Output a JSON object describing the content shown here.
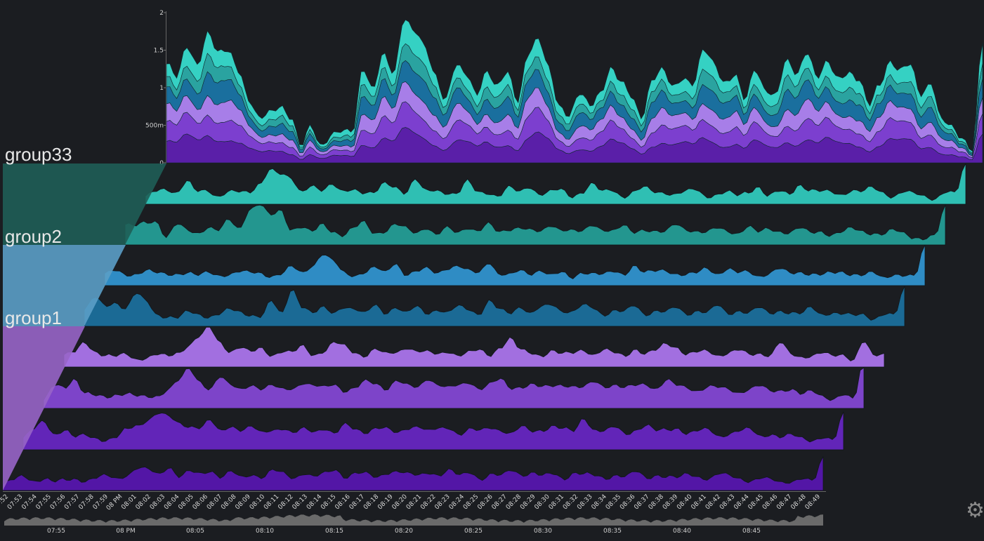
{
  "settings_icon": "gear-icon",
  "chart_data": [
    {
      "type": "area",
      "stacked": true,
      "title": "",
      "y_ticks": [
        "2",
        "1.5",
        "1",
        "500m",
        "0"
      ],
      "ylim": [
        0,
        2
      ],
      "total_series": [
        1.3,
        1.1,
        1.55,
        1.35,
        1.75,
        1.45,
        1.5,
        1.25,
        0.8,
        0.55,
        0.7,
        0.8,
        0.6,
        0.2,
        0.5,
        0.25,
        0.35,
        0.4,
        0.45,
        1.3,
        0.95,
        1.4,
        1.2,
        1.95,
        1.75,
        1.55,
        1.2,
        0.85,
        1.25,
        1.15,
        0.95,
        1.25,
        1.0,
        1.2,
        0.85,
        1.45,
        1.6,
        1.25,
        0.8,
        0.65,
        0.9,
        0.75,
        0.95,
        1.25,
        1.05,
        0.9,
        0.65,
        1.1,
        1.2,
        1.0,
        1.15,
        1.05,
        1.5,
        1.35,
        1.1,
        1.15,
        0.8,
        1.25,
        1.0,
        0.9,
        1.35,
        1.2,
        1.5,
        1.1,
        1.3,
        1.15,
        1.25,
        1.1,
        0.75,
        1.05,
        1.35,
        1.2,
        1.3,
        0.95,
        1.1,
        0.55,
        0.45,
        0.35,
        0.2,
        1.6
      ],
      "colors": [
        "#5a1fa8",
        "#7c3fcf",
        "#a77ee8",
        "#1a6f9e",
        "#2aa3a0",
        "#35d1c3"
      ]
    },
    {
      "type": "area",
      "layout": "horizon-stack",
      "x_ticks": [
        ":52",
        "07:53",
        "07:54",
        "07:55",
        "07:56",
        "07:57",
        "07:58",
        "07:59",
        "08 PM",
        "08:01",
        "08:02",
        "08:03",
        "08:04",
        "08:05",
        "08:06",
        "08:07",
        "08:08",
        "08:09",
        "08:10",
        "08:11",
        "08:12",
        "08:13",
        "08:14",
        "08:15",
        "08:16",
        "08:17",
        "08:18",
        "08:19",
        "08:20",
        "08:21",
        "08:22",
        "08:23",
        "08:24",
        "08:25",
        "08:26",
        "08:27",
        "08:28",
        "08:29",
        "08:30",
        "08:31",
        "08:32",
        "08:33",
        "08:34",
        "08:35",
        "08:36",
        "08:37",
        "08:38",
        "08:39",
        "08:40",
        "08:41",
        "08:42",
        "08:43",
        "08:44",
        "08:45",
        "08:46",
        "08:47",
        "08:48",
        "08:49"
      ],
      "groups": [
        {
          "label": "group33",
          "color": "#1f5e57"
        },
        {
          "label": "group2",
          "color": "#5b9fc6"
        },
        {
          "label": "group1",
          "color": "#9865c8"
        }
      ],
      "series": [
        {
          "color": "#2fbfb3",
          "values": [
            0.2,
            0.3,
            0.35,
            0.3,
            0.6,
            0.3,
            0.3,
            0.2,
            0.35,
            0.3,
            0.25,
            0.5,
            0.9,
            0.75,
            0.6,
            0.3,
            0.5,
            0.35,
            0.45,
            0.3,
            0.4,
            0.3,
            0.25,
            0.5,
            0.45,
            0.3,
            0.6,
            0.3,
            0.35,
            0.3,
            0.25,
            0.55,
            0.3,
            0.3,
            0.2,
            0.4,
            0.3,
            0.45,
            0.25,
            0.3,
            0.35,
            0.2,
            0.3,
            0.5,
            0.3,
            0.35,
            0.2,
            0.3,
            0.4,
            0.3,
            0.3,
            0.25,
            0.3,
            0.35,
            0.2,
            0.25,
            0.3,
            0.2,
            0.3,
            0.45,
            0.2,
            0.3,
            0.25,
            0.5,
            0.35,
            0.3,
            0.3,
            0.25,
            0.35,
            0.3,
            0.4,
            0.3,
            0.2,
            0.3,
            0.25,
            0.2,
            0.15,
            0.3,
            0.25,
            1.0
          ]
        },
        {
          "color": "#23968f",
          "values": [
            0.5,
            0.45,
            0.55,
            0.6,
            0.2,
            0.5,
            0.35,
            0.3,
            0.45,
            0.35,
            0.6,
            0.4,
            0.9,
            1.0,
            0.7,
            0.85,
            0.4,
            0.45,
            0.3,
            0.5,
            0.35,
            0.25,
            0.4,
            0.55,
            0.3,
            0.35,
            0.5,
            0.4,
            0.3,
            0.45,
            0.25,
            0.4,
            0.3,
            0.45,
            0.35,
            0.5,
            0.3,
            0.4,
            0.45,
            0.35,
            0.3,
            0.5,
            0.4,
            0.35,
            0.3,
            0.5,
            0.4,
            0.35,
            0.45,
            0.3,
            0.4,
            0.35,
            0.3,
            0.5,
            0.4,
            0.35,
            0.3,
            0.4,
            0.35,
            0.3,
            0.45,
            0.3,
            0.4,
            0.35,
            0.3,
            0.4,
            0.3,
            0.35,
            0.25,
            0.3,
            0.4,
            0.35,
            0.3,
            0.25,
            0.35,
            0.3,
            0.2,
            0.15,
            0.2,
            0.95
          ]
        },
        {
          "color": "#2f8cc4",
          "values": [
            0.3,
            0.35,
            0.25,
            0.3,
            0.4,
            0.3,
            0.25,
            0.3,
            0.35,
            0.25,
            0.3,
            0.25,
            0.3,
            0.35,
            0.3,
            0.3,
            0.25,
            0.3,
            0.45,
            0.3,
            0.5,
            0.8,
            0.6,
            0.3,
            0.25,
            0.35,
            0.45,
            0.3,
            0.55,
            0.3,
            0.35,
            0.4,
            0.3,
            0.45,
            0.5,
            0.35,
            0.3,
            0.6,
            0.3,
            0.25,
            0.35,
            0.3,
            0.4,
            0.25,
            0.3,
            0.2,
            0.35,
            0.3,
            0.25,
            0.35,
            0.3,
            0.5,
            0.3,
            0.35,
            0.4,
            0.3,
            0.25,
            0.3,
            0.45,
            0.3,
            0.4,
            0.3,
            0.35,
            0.25,
            0.3,
            0.4,
            0.3,
            0.35,
            0.3,
            0.25,
            0.3,
            0.35,
            0.3,
            0.25,
            0.3,
            0.2,
            0.3,
            0.25,
            0.2,
            1.0
          ]
        },
        {
          "color": "#1b6a95",
          "values": [
            0.4,
            0.7,
            0.5,
            0.6,
            0.45,
            0.8,
            0.6,
            0.3,
            0.25,
            0.2,
            0.35,
            0.3,
            0.25,
            0.3,
            0.4,
            0.35,
            0.3,
            0.25,
            0.6,
            0.3,
            0.95,
            0.5,
            0.3,
            0.45,
            0.35,
            0.5,
            0.4,
            0.3,
            0.55,
            0.35,
            0.45,
            0.3,
            0.5,
            0.35,
            0.4,
            0.3,
            0.5,
            0.45,
            0.3,
            0.6,
            0.4,
            0.35,
            0.5,
            0.3,
            0.45,
            0.55,
            0.4,
            0.35,
            0.5,
            0.45,
            0.3,
            0.4,
            0.35,
            0.5,
            0.3,
            0.4,
            0.35,
            0.45,
            0.3,
            0.4,
            0.35,
            0.5,
            0.3,
            0.4,
            0.35,
            0.45,
            0.3,
            0.4,
            0.35,
            0.3,
            0.45,
            0.3,
            0.35,
            0.3,
            0.25,
            0.3,
            0.2,
            0.3,
            0.25,
            0.95
          ]
        },
        {
          "color": "#a26fe0",
          "values": [
            0.3,
            0.35,
            0.6,
            0.4,
            0.3,
            0.25,
            0.3,
            0.2,
            0.25,
            0.3,
            0.25,
            0.35,
            0.55,
            0.75,
            0.95,
            0.6,
            0.4,
            0.5,
            0.35,
            0.45,
            0.3,
            0.4,
            0.35,
            0.5,
            0.3,
            0.4,
            0.6,
            0.5,
            0.35,
            0.3,
            0.45,
            0.3,
            0.35,
            0.5,
            0.4,
            0.35,
            0.3,
            0.4,
            0.3,
            0.35,
            0.4,
            0.3,
            0.5,
            0.7,
            0.4,
            0.35,
            0.3,
            0.4,
            0.3,
            0.35,
            0.45,
            0.3,
            0.4,
            0.35,
            0.3,
            0.45,
            0.3,
            0.4,
            0.6,
            0.5,
            0.3,
            0.35,
            0.4,
            0.3,
            0.35,
            0.4,
            0.3,
            0.35,
            0.3,
            0.6,
            0.3,
            0.25,
            0.3,
            0.35,
            0.25,
            0.3,
            0.2,
            0.65,
            0.25,
            0.3
          ]
        },
        {
          "color": "#7d44c9",
          "values": [
            0.2,
            0.55,
            0.5,
            0.75,
            0.4,
            0.3,
            0.25,
            0.35,
            0.4,
            0.3,
            0.25,
            0.3,
            0.5,
            0.7,
            0.95,
            0.65,
            0.5,
            0.8,
            0.55,
            0.45,
            0.6,
            0.5,
            0.55,
            0.45,
            0.5,
            0.65,
            0.55,
            0.5,
            0.6,
            0.45,
            0.5,
            0.65,
            0.6,
            0.5,
            0.7,
            0.55,
            0.5,
            0.75,
            0.6,
            0.5,
            0.55,
            0.65,
            0.5,
            0.6,
            0.7,
            0.5,
            0.55,
            0.6,
            0.5,
            0.55,
            0.6,
            0.55,
            0.5,
            0.65,
            0.55,
            0.6,
            0.5,
            0.55,
            0.6,
            0.5,
            0.7,
            0.55,
            0.5,
            0.45,
            0.55,
            0.5,
            0.45,
            0.4,
            0.5,
            0.55,
            0.4,
            0.45,
            0.5,
            0.35,
            0.4,
            0.3,
            0.25,
            0.35,
            0.2,
            1.2
          ]
        },
        {
          "color": "#6225b8",
          "values": [
            0.3,
            0.5,
            0.7,
            0.4,
            0.5,
            0.3,
            0.35,
            0.3,
            0.25,
            0.3,
            0.5,
            0.6,
            0.75,
            0.9,
            0.8,
            0.65,
            0.6,
            0.55,
            0.7,
            0.45,
            0.6,
            0.5,
            0.55,
            0.4,
            0.5,
            0.55,
            0.4,
            0.5,
            0.45,
            0.55,
            0.4,
            0.6,
            0.5,
            0.45,
            0.55,
            0.5,
            0.4,
            0.55,
            0.6,
            0.45,
            0.5,
            0.55,
            0.4,
            0.5,
            0.45,
            0.55,
            0.5,
            0.4,
            0.55,
            0.45,
            0.5,
            0.6,
            0.5,
            0.45,
            0.8,
            0.5,
            0.45,
            0.55,
            0.4,
            0.5,
            0.6,
            0.45,
            0.5,
            0.55,
            0.4,
            0.45,
            0.5,
            0.35,
            0.4,
            0.45,
            0.5,
            0.35,
            0.4,
            0.3,
            0.35,
            0.3,
            0.25,
            0.3,
            0.2,
            0.9
          ]
        },
        {
          "color": "#5316a6",
          "values": [
            0.15,
            0.25,
            0.35,
            0.25,
            0.3,
            0.2,
            0.25,
            0.3,
            0.25,
            0.3,
            0.35,
            0.3,
            0.4,
            0.55,
            0.5,
            0.4,
            0.6,
            0.35,
            0.45,
            0.4,
            0.5,
            0.35,
            0.45,
            0.3,
            0.4,
            0.35,
            0.5,
            0.4,
            0.3,
            0.45,
            0.35,
            0.4,
            0.5,
            0.35,
            0.45,
            0.4,
            0.3,
            0.45,
            0.5,
            0.4,
            0.35,
            0.45,
            0.4,
            0.5,
            0.35,
            0.45,
            0.3,
            0.4,
            0.35,
            0.5,
            0.4,
            0.45,
            0.35,
            0.4,
            0.3,
            0.45,
            0.4,
            0.35,
            0.3,
            0.4,
            0.35,
            0.45,
            0.3,
            0.4,
            0.35,
            0.3,
            0.4,
            0.35,
            0.3,
            0.4,
            0.35,
            0.3,
            0.25,
            0.3,
            0.25,
            0.2,
            0.25,
            0.3,
            0.2,
            0.8
          ]
        }
      ]
    },
    {
      "type": "bar",
      "role": "range-navigator",
      "x_ticks": [
        "07:55",
        "08 PM",
        "08:05",
        "08:10",
        "08:15",
        "08:20",
        "08:25",
        "08:30",
        "08:35",
        "08:40",
        "08:45"
      ]
    }
  ]
}
